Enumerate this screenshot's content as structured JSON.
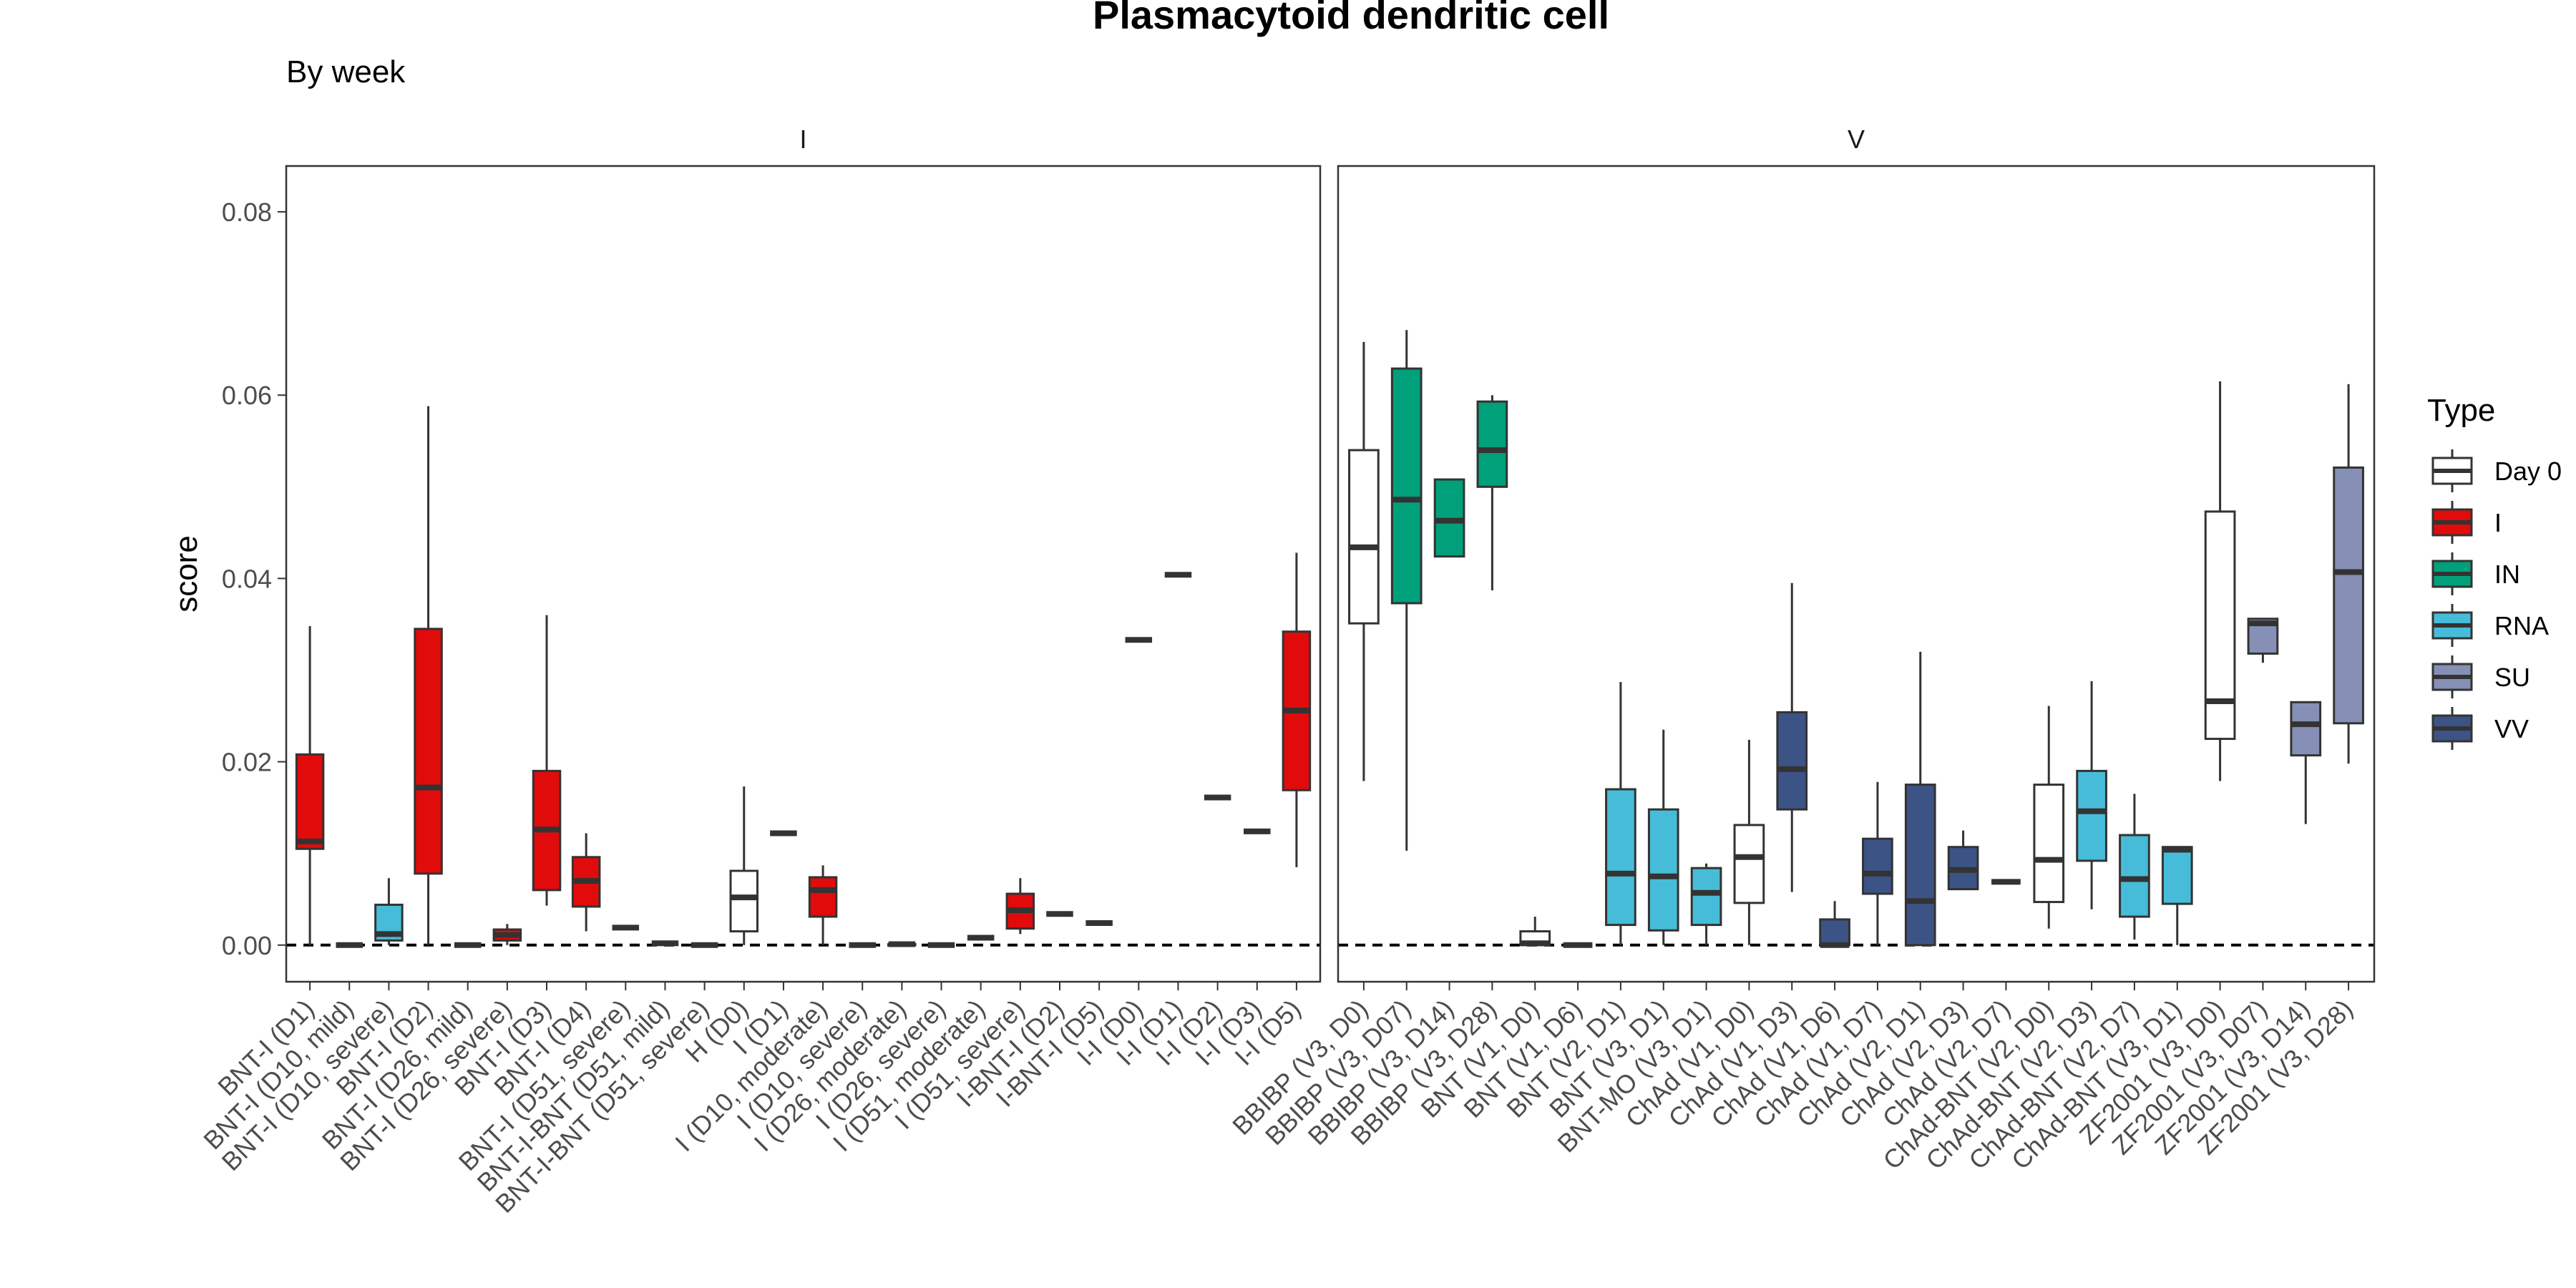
{
  "chart_data": {
    "type": "boxplot",
    "title": "Plasmacytoid dendritic cell",
    "subtitle": "By week",
    "ylabel": "score",
    "ylim": [
      -0.004,
      0.085
    ],
    "yticks": [
      {
        "value": 0.0,
        "label": "0.00"
      },
      {
        "value": 0.02,
        "label": "0.02"
      },
      {
        "value": 0.04,
        "label": "0.04"
      },
      {
        "value": 0.06,
        "label": "0.06"
      },
      {
        "value": 0.08,
        "label": "0.08"
      }
    ],
    "reference_line": 0,
    "legend": {
      "title": "Type",
      "position": "right",
      "items": [
        {
          "name": "Day 0",
          "color": "#ffffff"
        },
        {
          "name": "I",
          "color": "#e10b0b"
        },
        {
          "name": "IN",
          "color": "#00a07a"
        },
        {
          "name": "RNA",
          "color": "#47bcd8"
        },
        {
          "name": "SU",
          "color": "#8690b6"
        },
        {
          "name": "VV",
          "color": "#3c5386"
        }
      ]
    },
    "colors": {
      "Day 0": "#ffffff",
      "I": "#e10b0b",
      "IN": "#00a07a",
      "RNA": "#47bcd8",
      "SU": "#8690b6",
      "VV": "#3c5386"
    },
    "panels": [
      {
        "name": "I",
        "boxes": [
          {
            "label": "BNT-I (D1)",
            "type": "I",
            "min": 0.0,
            "q1": 0.0105,
            "median": 0.0113,
            "q3": 0.0208,
            "max": 0.0348
          },
          {
            "label": "BNT-I (D10, mild)",
            "type": "I",
            "min": 0.0,
            "q1": 0.0,
            "median": 0.0,
            "q3": 0.0,
            "max": 0.0
          },
          {
            "label": "BNT-I (D10, severe)",
            "type": "RNA",
            "min": 0.0,
            "q1": 0.0005,
            "median": 0.0012,
            "q3": 0.0044,
            "max": 0.0073
          },
          {
            "label": "BNT-I (D2)",
            "type": "I",
            "min": 0.0,
            "q1": 0.0078,
            "median": 0.0172,
            "q3": 0.0345,
            "max": 0.0588
          },
          {
            "label": "BNT-I (D26, mild)",
            "type": "I",
            "min": 0.0,
            "q1": 0.0,
            "median": 0.0,
            "q3": 0.0,
            "max": 0.0
          },
          {
            "label": "BNT-I (D26, severe)",
            "type": "I",
            "min": 0.0,
            "q1": 0.0005,
            "median": 0.0011,
            "q3": 0.0017,
            "max": 0.0023
          },
          {
            "label": "BNT-I (D3)",
            "type": "I",
            "min": 0.0043,
            "q1": 0.006,
            "median": 0.0126,
            "q3": 0.019,
            "max": 0.036
          },
          {
            "label": "BNT-I (D4)",
            "type": "I",
            "min": 0.0015,
            "q1": 0.0042,
            "median": 0.007,
            "q3": 0.0096,
            "max": 0.0122
          },
          {
            "label": "BNT-I (D51, severe)",
            "type": "I",
            "min": 0.0019,
            "q1": 0.0019,
            "median": 0.0019,
            "q3": 0.0019,
            "max": 0.0019
          },
          {
            "label": "BNT-I-BNT (D51, mild)",
            "type": "I",
            "min": 0.0002,
            "q1": 0.0002,
            "median": 0.0002,
            "q3": 0.0002,
            "max": 0.0002
          },
          {
            "label": "BNT-I-BNT (D51, severe)",
            "type": "I",
            "min": 0.0,
            "q1": 0.0,
            "median": 0.0,
            "q3": 0.0,
            "max": 0.0
          },
          {
            "label": "H (D0)",
            "type": "Day 0",
            "min": 0.0,
            "q1": 0.0015,
            "median": 0.0052,
            "q3": 0.0081,
            "max": 0.0173
          },
          {
            "label": "I (D1)",
            "type": "I",
            "min": 0.0122,
            "q1": 0.0122,
            "median": 0.0122,
            "q3": 0.0122,
            "max": 0.0122
          },
          {
            "label": "I (D10, moderate)",
            "type": "I",
            "min": 0.0,
            "q1": 0.0031,
            "median": 0.006,
            "q3": 0.0074,
            "max": 0.0087
          },
          {
            "label": "I (D10, severe)",
            "type": "I",
            "min": 0.0,
            "q1": 0.0,
            "median": 0.0,
            "q3": 0.0,
            "max": 0.0
          },
          {
            "label": "I (D26, moderate)",
            "type": "I",
            "min": 0.0,
            "q1": 0.0,
            "median": 0.0001,
            "q3": 0.0001,
            "max": 0.0002
          },
          {
            "label": "I (D26, severe)",
            "type": "I",
            "min": 0.0,
            "q1": 0.0,
            "median": 0.0,
            "q3": 0.0,
            "max": 0.0
          },
          {
            "label": "I (D51, moderate)",
            "type": "I",
            "min": 0.0008,
            "q1": 0.0008,
            "median": 0.0008,
            "q3": 0.0008,
            "max": 0.0008
          },
          {
            "label": "I (D51, severe)",
            "type": "I",
            "min": 0.0012,
            "q1": 0.0018,
            "median": 0.0038,
            "q3": 0.0056,
            "max": 0.0073
          },
          {
            "label": "I-BNT-I (D2)",
            "type": "I",
            "min": 0.0034,
            "q1": 0.0034,
            "median": 0.0034,
            "q3": 0.0034,
            "max": 0.0034
          },
          {
            "label": "I-BNT-I (D5)",
            "type": "I",
            "min": 0.0024,
            "q1": 0.0024,
            "median": 0.0024,
            "q3": 0.0024,
            "max": 0.0024
          },
          {
            "label": "I-I (D0)",
            "type": "Day 0",
            "min": 0.0333,
            "q1": 0.0333,
            "median": 0.0333,
            "q3": 0.0333,
            "max": 0.0333
          },
          {
            "label": "I-I (D1)",
            "type": "I",
            "min": 0.0404,
            "q1": 0.0404,
            "median": 0.0404,
            "q3": 0.0404,
            "max": 0.0404
          },
          {
            "label": "I-I (D2)",
            "type": "I",
            "min": 0.0161,
            "q1": 0.0161,
            "median": 0.0161,
            "q3": 0.0161,
            "max": 0.0161
          },
          {
            "label": "I-I (D3)",
            "type": "I",
            "min": 0.0124,
            "q1": 0.0124,
            "median": 0.0124,
            "q3": 0.0124,
            "max": 0.0124
          },
          {
            "label": "I-I (D5)",
            "type": "I",
            "min": 0.0085,
            "q1": 0.0169,
            "median": 0.0256,
            "q3": 0.0342,
            "max": 0.0428
          }
        ]
      },
      {
        "name": "V",
        "boxes": [
          {
            "label": "BBIBP (V3, D0)",
            "type": "Day 0",
            "min": 0.0179,
            "q1": 0.0351,
            "median": 0.0434,
            "q3": 0.054,
            "max": 0.0658
          },
          {
            "label": "BBIBP (V3, D07)",
            "type": "IN",
            "min": 0.0103,
            "q1": 0.0373,
            "median": 0.0486,
            "q3": 0.0629,
            "max": 0.0671
          },
          {
            "label": "BBIBP (V3, D14)",
            "type": "IN",
            "min": 0.0424,
            "q1": 0.0424,
            "median": 0.0463,
            "q3": 0.0508,
            "max": 0.0508
          },
          {
            "label": "BBIBP (V3, D28)",
            "type": "IN",
            "min": 0.0387,
            "q1": 0.05,
            "median": 0.054,
            "q3": 0.0593,
            "max": 0.06
          },
          {
            "label": "BNT (V1, D0)",
            "type": "Day 0",
            "min": 0.0,
            "q1": 0.0,
            "median": 0.0002,
            "q3": 0.0015,
            "max": 0.0031
          },
          {
            "label": "BNT (V1, D6)",
            "type": "RNA",
            "min": 0.0,
            "q1": 0.0,
            "median": 0.0,
            "q3": 0.0,
            "max": 0.0
          },
          {
            "label": "BNT (V2, D1)",
            "type": "RNA",
            "min": 0.0,
            "q1": 0.0022,
            "median": 0.0078,
            "q3": 0.017,
            "max": 0.0287
          },
          {
            "label": "BNT (V3, D1)",
            "type": "RNA",
            "min": 0.0,
            "q1": 0.0016,
            "median": 0.0075,
            "q3": 0.0148,
            "max": 0.0235
          },
          {
            "label": "BNT-MO (V3, D1)",
            "type": "RNA",
            "min": 0.0,
            "q1": 0.0022,
            "median": 0.0057,
            "q3": 0.0084,
            "max": 0.0089
          },
          {
            "label": "ChAd (V1, D0)",
            "type": "Day 0",
            "min": 0.0,
            "q1": 0.0046,
            "median": 0.0096,
            "q3": 0.0131,
            "max": 0.0224
          },
          {
            "label": "ChAd (V1, D3)",
            "type": "VV",
            "min": 0.0058,
            "q1": 0.0148,
            "median": 0.0192,
            "q3": 0.0254,
            "max": 0.0395
          },
          {
            "label": "ChAd (V1, D6)",
            "type": "VV",
            "min": 0.0,
            "q1": 0.0,
            "median": 0.0,
            "q3": 0.0028,
            "max": 0.0048
          },
          {
            "label": "ChAd (V1, D7)",
            "type": "VV",
            "min": 0.0,
            "q1": 0.0056,
            "median": 0.0078,
            "q3": 0.0116,
            "max": 0.0178
          },
          {
            "label": "ChAd (V2, D1)",
            "type": "VV",
            "min": 0.0,
            "q1": 0.0,
            "median": 0.0048,
            "q3": 0.0175,
            "max": 0.032
          },
          {
            "label": "ChAd (V2, D3)",
            "type": "VV",
            "min": 0.0061,
            "q1": 0.0061,
            "median": 0.0082,
            "q3": 0.0107,
            "max": 0.0125
          },
          {
            "label": "ChAd (V2, D7)",
            "type": "VV",
            "min": 0.0069,
            "q1": 0.0069,
            "median": 0.0069,
            "q3": 0.0069,
            "max": 0.0069
          },
          {
            "label": "ChAd-BNT (V2, D0)",
            "type": "Day 0",
            "min": 0.0018,
            "q1": 0.0047,
            "median": 0.0093,
            "q3": 0.0175,
            "max": 0.0261
          },
          {
            "label": "ChAd-BNT (V2, D3)",
            "type": "RNA",
            "min": 0.0039,
            "q1": 0.0092,
            "median": 0.0146,
            "q3": 0.019,
            "max": 0.0288
          },
          {
            "label": "ChAd-BNT (V2, D7)",
            "type": "RNA",
            "min": 0.0006,
            "q1": 0.0031,
            "median": 0.0072,
            "q3": 0.012,
            "max": 0.0165
          },
          {
            "label": "ChAd-BNT (V3, D1)",
            "type": "RNA",
            "min": 0.0,
            "q1": 0.0045,
            "median": 0.0104,
            "q3": 0.0107,
            "max": 0.0107
          },
          {
            "label": "ZF2001 (V3, D0)",
            "type": "Day 0",
            "min": 0.0179,
            "q1": 0.0225,
            "median": 0.0266,
            "q3": 0.0473,
            "max": 0.0615
          },
          {
            "label": "ZF2001 (V3, D07)",
            "type": "SU",
            "min": 0.0308,
            "q1": 0.0318,
            "median": 0.0351,
            "q3": 0.0356,
            "max": 0.0356
          },
          {
            "label": "ZF2001 (V3, D14)",
            "type": "SU",
            "min": 0.0132,
            "q1": 0.0207,
            "median": 0.0241,
            "q3": 0.0265,
            "max": 0.0265
          },
          {
            "label": "ZF2001 (V3, D28)",
            "type": "SU",
            "min": 0.0198,
            "q1": 0.0242,
            "median": 0.0407,
            "q3": 0.0521,
            "max": 0.0612
          }
        ]
      }
    ]
  }
}
